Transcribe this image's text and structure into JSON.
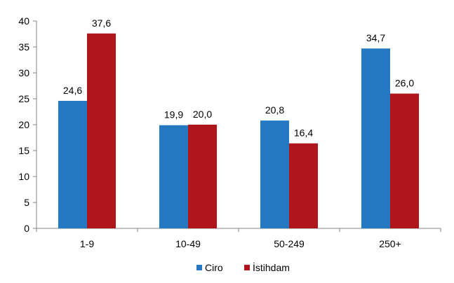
{
  "chart_data": {
    "type": "bar",
    "categories": [
      "1-9",
      "10-49",
      "50-249",
      "250+"
    ],
    "series": [
      {
        "name": "Ciro",
        "values": [
          24.6,
          19.9,
          20.8,
          34.7
        ],
        "labels": [
          "24,6",
          "19,9",
          "20,8",
          "34,7"
        ],
        "color": "#2479c2"
      },
      {
        "name": "İstihdam",
        "values": [
          37.6,
          20.0,
          16.4,
          26.0
        ],
        "labels": [
          "37,6",
          "20,0",
          "16,4",
          "26,0"
        ],
        "color": "#b0151b"
      }
    ],
    "ylim": [
      0,
      40
    ],
    "yticks": [
      0,
      5,
      10,
      15,
      20,
      25,
      30,
      35,
      40
    ],
    "title": "",
    "xlabel": "",
    "ylabel": "",
    "grid": false,
    "legend": "bottom"
  }
}
